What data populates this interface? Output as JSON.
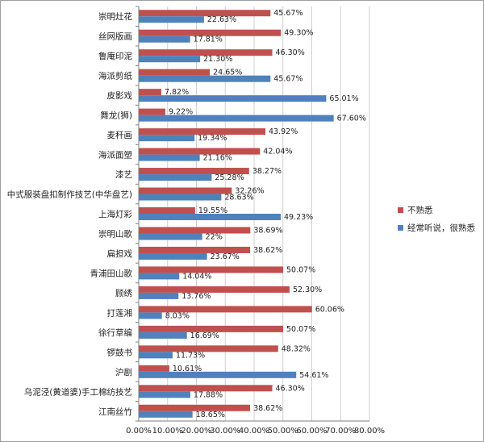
{
  "chart_data": {
    "type": "bar",
    "orientation": "horizontal",
    "title": "",
    "xlabel": "",
    "ylabel": "",
    "xlim": [
      0,
      80
    ],
    "x_ticks": [
      "0.00%",
      "10.00%",
      "20.00%",
      "30.00%",
      "40.00%",
      "50.00%",
      "60.00%",
      "70.00%",
      "80.00%"
    ],
    "grid": true,
    "legend_position": "right",
    "categories": [
      "崇明灶花",
      "丝网版画",
      "鲁庵印泥",
      "海派剪纸",
      "皮影戏",
      "舞龙(狮)",
      "麦秆画",
      "海派面塑",
      "漆艺",
      "中式服装盘扣制作技艺(中华盘艺)",
      "上海灯彩",
      "崇明山歌",
      "扁担戏",
      "青浦田山歌",
      "顾绣",
      "打莲湘",
      "徐行草编",
      "锣鼓书",
      "沪剧",
      "乌泥泾(黄道婆)手工棉纺技艺",
      "江南丝竹"
    ],
    "series": [
      {
        "name": "不熟悉",
        "color": "#c0504d",
        "values": [
          45.67,
          49.3,
          46.3,
          24.65,
          7.82,
          9.22,
          43.92,
          42.04,
          38.27,
          32.26,
          19.55,
          38.69,
          38.62,
          50.07,
          52.3,
          60.06,
          50.07,
          48.32,
          10.61,
          46.3,
          38.62
        ],
        "labels": [
          "45.67%",
          "49.30%",
          "46.30%",
          "24.65%",
          "7.82%",
          "9.22%",
          "43.92%",
          "42.04%",
          "38.27%",
          "32.26%",
          "19.55%",
          "38.69%",
          "38.62%",
          "50.07%",
          "52.30%",
          "60.06%",
          "50.07%",
          "48.32%",
          "10.61%",
          "46.30%",
          "38.62%"
        ]
      },
      {
        "name": "经常听说，很熟悉",
        "color": "#4f81bd",
        "values": [
          22.63,
          17.81,
          21.3,
          45.67,
          65.01,
          67.6,
          19.34,
          21.16,
          25.28,
          28.63,
          49.23,
          22,
          23.67,
          14.04,
          13.76,
          8.03,
          16.69,
          11.73,
          54.61,
          17.88,
          18.65
        ],
        "labels": [
          "22.63%",
          "17.81%",
          "21.30%",
          "45.67%",
          "65.01%",
          "67.60%",
          "19.34%",
          "21.16%",
          "25.28%",
          "28.63%",
          "49.23%",
          "22%",
          "23.67%",
          "14.04%",
          "13.76%",
          "8.03%",
          "16.69%",
          "11.73%",
          "54.61%",
          "17.88%",
          "18.65%"
        ]
      }
    ]
  }
}
